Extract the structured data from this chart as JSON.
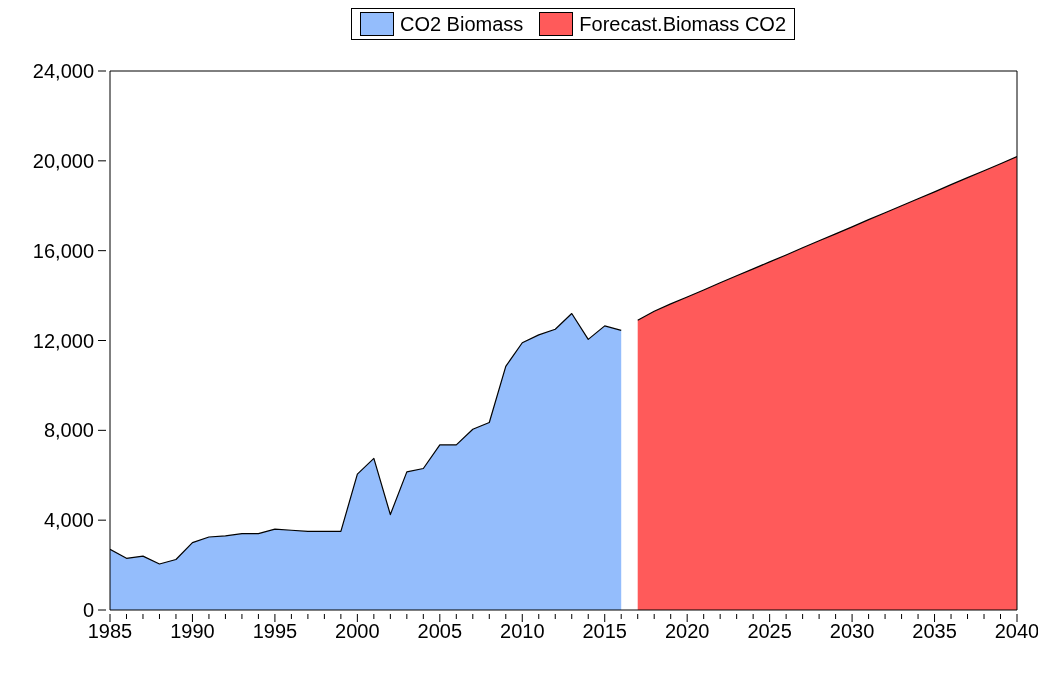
{
  "chart_data": {
    "type": "area",
    "legend": "top",
    "xlim": [
      1985,
      2040
    ],
    "xticks": [
      1985,
      {
        "value": 1986,
        "label": null
      },
      {
        "value": 1987,
        "label": null
      },
      {
        "value": 1988,
        "label": null
      },
      {
        "value": 1989,
        "label": null
      },
      1990,
      {
        "value": 1991,
        "label": null
      },
      {
        "value": 1992,
        "label": null
      },
      {
        "value": 1993,
        "label": null
      },
      {
        "value": 1994,
        "label": null
      },
      1995,
      {
        "value": 1996,
        "label": null
      },
      {
        "value": 1997,
        "label": null
      },
      {
        "value": 1998,
        "label": null
      },
      {
        "value": 1999,
        "label": null
      },
      2000,
      {
        "value": 2001,
        "label": null
      },
      {
        "value": 2002,
        "label": null
      },
      {
        "value": 2003,
        "label": null
      },
      {
        "value": 2004,
        "label": null
      },
      2005,
      {
        "value": 2006,
        "label": null
      },
      {
        "value": 2007,
        "label": null
      },
      {
        "value": 2008,
        "label": null
      },
      {
        "value": 2009,
        "label": null
      },
      2010,
      {
        "value": 2011,
        "label": null
      },
      {
        "value": 2012,
        "label": null
      },
      {
        "value": 2013,
        "label": null
      },
      {
        "value": 2014,
        "label": null
      },
      2015,
      {
        "value": 2016,
        "label": null
      },
      {
        "value": 2017,
        "label": null
      },
      {
        "value": 2018,
        "label": null
      },
      {
        "value": 2019,
        "label": null
      },
      2020,
      {
        "value": 2021,
        "label": null
      },
      {
        "value": 2022,
        "label": null
      },
      {
        "value": 2023,
        "label": null
      },
      {
        "value": 2024,
        "label": null
      },
      2025,
      {
        "value": 2026,
        "label": null
      },
      {
        "value": 2027,
        "label": null
      },
      {
        "value": 2028,
        "label": null
      },
      {
        "value": 2029,
        "label": null
      },
      2030,
      {
        "value": 2031,
        "label": null
      },
      {
        "value": 2032,
        "label": null
      },
      {
        "value": 2033,
        "label": null
      },
      {
        "value": 2034,
        "label": null
      },
      2035,
      {
        "value": 2036,
        "label": null
      },
      {
        "value": 2037,
        "label": null
      },
      {
        "value": 2038,
        "label": null
      },
      {
        "value": 2039,
        "label": null
      },
      2040
    ],
    "ylim": [
      0,
      24000
    ],
    "yticks": [
      0,
      {
        "value": 4000,
        "label": "4,000"
      },
      {
        "value": 8000,
        "label": "8,000"
      },
      {
        "value": 12000,
        "label": "12,000"
      },
      {
        "value": 16000,
        "label": "16,000"
      },
      {
        "value": 20000,
        "label": "20,000"
      },
      {
        "value": 24000,
        "label": "24,000"
      }
    ],
    "series": [
      {
        "name": "CO2 Biomass",
        "color": "#94bdfc",
        "x": [
          1985,
          1986,
          1987,
          1988,
          1989,
          1990,
          1991,
          1992,
          1993,
          1994,
          1995,
          1996,
          1997,
          1998,
          1999,
          2000,
          2001,
          2002,
          2003,
          2004,
          2005,
          2006,
          2007,
          2008,
          2009,
          2010,
          2011,
          2012,
          2013,
          2014,
          2015,
          2016
        ],
        "values": [
          2700,
          2300,
          2400,
          2050,
          2250,
          3000,
          3250,
          3300,
          3400,
          3400,
          3600,
          3550,
          3500,
          3500,
          3500,
          6050,
          6750,
          4250,
          6150,
          6300,
          7350,
          7350,
          8050,
          8350,
          10850,
          11900,
          12250,
          12500,
          13200,
          12050,
          12650,
          12450
        ]
      },
      {
        "name": "Forecast.Biomass CO2",
        "color": "#ff5a5a",
        "x": [
          2017,
          2018,
          2019,
          2020,
          2021,
          2022,
          2023,
          2024,
          2025,
          2026,
          2027,
          2028,
          2029,
          2030,
          2031,
          2032,
          2033,
          2034,
          2035,
          2036,
          2037,
          2038,
          2039,
          2040
        ],
        "values": [
          12900,
          13300,
          13630,
          13940,
          14250,
          14570,
          14880,
          15190,
          15500,
          15810,
          16130,
          16440,
          16750,
          17060,
          17380,
          17690,
          18000,
          18310,
          18620,
          18940,
          19250,
          19560,
          19870,
          20190
        ]
      }
    ]
  }
}
